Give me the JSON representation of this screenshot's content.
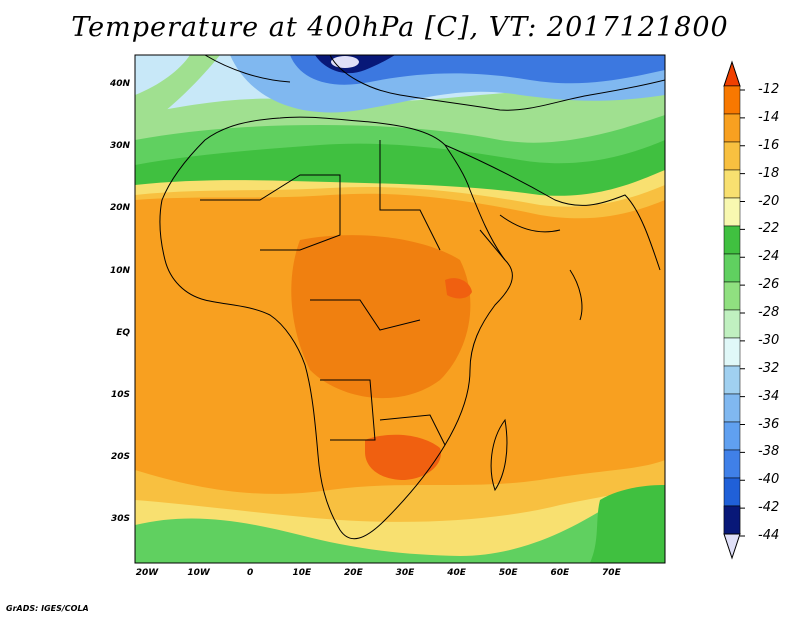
{
  "title": "Temperature at 400hPa [C], VT: 2017121800",
  "credit": "GrADS: IGES/COLA",
  "y_axis_labels": [
    "40N",
    "30N",
    "20N",
    "10N",
    "EQ",
    "10S",
    "20S",
    "30S"
  ],
  "x_axis_labels": [
    "20W",
    "10W",
    "0",
    "10E",
    "20E",
    "30E",
    "40E",
    "50E",
    "60E",
    "70E"
  ],
  "colorbar": {
    "labels": [
      "-12",
      "-14",
      "-16",
      "-18",
      "-20",
      "-22",
      "-24",
      "-26",
      "-28",
      "-30",
      "-32",
      "-34",
      "-36",
      "-38",
      "-40",
      "-42",
      "-44"
    ],
    "colors": [
      "#f04000",
      "#f87800",
      "#f8a020",
      "#f8c040",
      "#f8e070",
      "#f8f8b0",
      "#40c040",
      "#60d060",
      "#90e080",
      "#c0f0c0",
      "#e0f8f8",
      "#a0d0f0",
      "#80b8f0",
      "#60a0f0",
      "#4080e8",
      "#2060d8",
      "#1040b8",
      "#081878"
    ],
    "under_color": "#e0e0f8"
  },
  "field_colors": {
    "deep_cold": "#081878",
    "cold_blue": "#3c78e0",
    "mid_blue": "#80b8f0",
    "light_blue": "#c8e8f8",
    "pale_green": "#a0e090",
    "green": "#50c850",
    "yellow": "#f8e070",
    "light_orange": "#f8c040",
    "orange": "#f8a020",
    "dark_orange": "#f08010"
  }
}
